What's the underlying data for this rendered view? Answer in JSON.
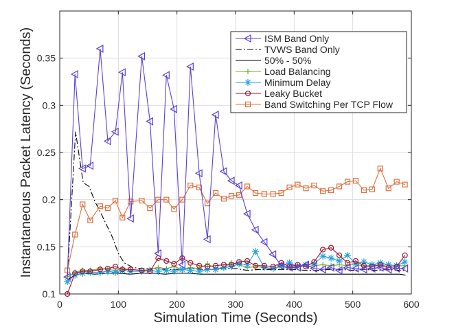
{
  "chart_data": {
    "type": "line",
    "xlabel": "Simulation Time (Seconds)",
    "ylabel": "Instantaneous Packet Latency (Seconds)",
    "xlim": [
      0,
      600
    ],
    "ylim": [
      0.1,
      0.4
    ],
    "xticks": [
      0,
      100,
      200,
      300,
      400,
      500,
      600
    ],
    "xtick_labels": [
      "0",
      "100",
      "200",
      "300",
      "400",
      "500",
      "600"
    ],
    "yticks": [
      0.1,
      0.15,
      0.2,
      0.25,
      0.3,
      0.35
    ],
    "ytick_labels": [
      "0.1",
      "0.15",
      "0.2",
      "0.25",
      "0.3",
      "0.35"
    ],
    "grid": true,
    "legend_position": "top-right",
    "series": [
      {
        "name": "ISM Band Only",
        "color": "#5b3fd6",
        "marker": "triangle-left",
        "x": [
          13,
          26,
          39,
          52,
          69,
          82,
          95,
          107,
          121,
          140,
          154,
          168,
          182,
          195,
          209,
          223,
          238,
          252,
          266,
          280,
          293,
          306,
          320,
          334,
          349,
          364,
          378,
          392,
          406,
          420,
          434,
          449,
          463,
          477,
          491,
          505,
          519,
          533,
          547,
          561,
          575,
          589
        ],
        "y": [
          0.118,
          0.333,
          0.233,
          0.236,
          0.36,
          0.262,
          0.272,
          0.335,
          0.18,
          0.352,
          0.283,
          0.143,
          0.332,
          0.296,
          0.131,
          0.341,
          0.228,
          0.158,
          0.29,
          0.23,
          0.22,
          0.215,
          0.185,
          0.168,
          0.155,
          0.142,
          0.13,
          0.128,
          0.128,
          0.131,
          0.127,
          0.126,
          0.128,
          0.125,
          0.128,
          0.127,
          0.126,
          0.127,
          0.128,
          0.126,
          0.127,
          0.127
        ]
      },
      {
        "name": "TVWS Band Only",
        "color": "#000000",
        "marker": "none",
        "x": [
          13,
          27,
          40,
          50,
          60,
          70,
          80,
          90,
          100,
          110,
          125,
          140,
          160,
          180,
          200,
          220,
          240,
          260,
          280,
          300,
          320,
          340,
          360,
          380,
          400,
          420,
          440,
          460,
          480,
          500,
          520,
          540,
          560,
          580,
          590
        ],
        "y": [
          0.118,
          0.272,
          0.218,
          0.214,
          0.198,
          0.186,
          0.173,
          0.16,
          0.143,
          0.133,
          0.128,
          0.127,
          0.127,
          0.126,
          0.126,
          0.127,
          0.126,
          0.126,
          0.127,
          0.127,
          0.125,
          0.126,
          0.126,
          0.126,
          0.126,
          0.125,
          0.125,
          0.126,
          0.126,
          0.125,
          0.126,
          0.125,
          0.126,
          0.125,
          0.125
        ]
      },
      {
        "name": "50% - 50%",
        "color": "#000000",
        "marker": "none",
        "x": [
          13,
          26,
          40,
          60,
          80,
          100,
          120,
          140,
          160,
          180,
          200,
          220,
          240,
          260,
          280,
          300,
          320,
          340,
          360,
          380,
          400,
          420,
          440,
          460,
          480,
          500,
          520,
          540,
          560,
          580,
          590
        ],
        "y": [
          0.115,
          0.12,
          0.122,
          0.121,
          0.122,
          0.122,
          0.121,
          0.122,
          0.122,
          0.121,
          0.122,
          0.122,
          0.121,
          0.121,
          0.121,
          0.121,
          0.121,
          0.121,
          0.121,
          0.121,
          0.121,
          0.121,
          0.121,
          0.121,
          0.121,
          0.121,
          0.121,
          0.121,
          0.121,
          0.121,
          0.12
        ]
      },
      {
        "name": "Load Balancing",
        "color": "#77ac30",
        "marker": "plus",
        "x": [
          13,
          26,
          39,
          52,
          69,
          82,
          95,
          107,
          121,
          140,
          154,
          168,
          182,
          195,
          209,
          223,
          238,
          252,
          266,
          280,
          293,
          306,
          320,
          334,
          349,
          364,
          378,
          392,
          406,
          420,
          434,
          449,
          463,
          477,
          491,
          505,
          519,
          533,
          547,
          561,
          575,
          589
        ],
        "y": [
          0.118,
          0.123,
          0.125,
          0.125,
          0.127,
          0.126,
          0.125,
          0.127,
          0.126,
          0.125,
          0.126,
          0.128,
          0.127,
          0.129,
          0.126,
          0.128,
          0.127,
          0.132,
          0.127,
          0.128,
          0.133,
          0.131,
          0.128,
          0.129,
          0.128,
          0.127,
          0.129,
          0.128,
          0.13,
          0.129,
          0.13,
          0.131,
          0.13,
          0.131,
          0.13,
          0.132,
          0.129,
          0.131,
          0.13,
          0.131,
          0.13,
          0.13
        ]
      },
      {
        "name": "Minimum Delay",
        "color": "#1ea3e6",
        "marker": "asterisk",
        "x": [
          13,
          26,
          39,
          52,
          69,
          82,
          95,
          107,
          121,
          140,
          154,
          168,
          182,
          195,
          209,
          223,
          238,
          252,
          266,
          280,
          293,
          306,
          320,
          334,
          349,
          364,
          378,
          392,
          406,
          420,
          434,
          449,
          463,
          477,
          491,
          505,
          519,
          533,
          547,
          561,
          575,
          589
        ],
        "y": [
          0.113,
          0.12,
          0.122,
          0.123,
          0.123,
          0.124,
          0.123,
          0.125,
          0.124,
          0.124,
          0.125,
          0.124,
          0.125,
          0.124,
          0.126,
          0.125,
          0.124,
          0.126,
          0.126,
          0.128,
          0.129,
          0.132,
          0.131,
          0.145,
          0.128,
          0.127,
          0.13,
          0.133,
          0.129,
          0.131,
          0.132,
          0.14,
          0.138,
          0.135,
          0.141,
          0.132,
          0.134,
          0.131,
          0.133,
          0.131,
          0.13,
          0.134
        ]
      },
      {
        "name": "Leaky Bucket",
        "color": "#a2142f",
        "marker": "circle",
        "x": [
          13,
          26,
          39,
          52,
          69,
          82,
          95,
          107,
          121,
          140,
          154,
          168,
          182,
          195,
          209,
          223,
          238,
          252,
          266,
          280,
          293,
          306,
          320,
          334,
          349,
          364,
          378,
          392,
          406,
          420,
          434,
          449,
          463,
          477,
          491,
          505,
          519,
          533,
          547,
          561,
          575,
          589
        ],
        "y": [
          0.1,
          0.122,
          0.124,
          0.124,
          0.126,
          0.127,
          0.129,
          0.126,
          0.126,
          0.125,
          0.124,
          0.138,
          0.135,
          0.132,
          0.138,
          0.133,
          0.13,
          0.129,
          0.13,
          0.131,
          0.131,
          0.134,
          0.135,
          0.13,
          0.13,
          0.129,
          0.133,
          0.129,
          0.131,
          0.129,
          0.134,
          0.147,
          0.149,
          0.141,
          0.133,
          0.135,
          0.13,
          0.129,
          0.131,
          0.128,
          0.129,
          0.141
        ]
      },
      {
        "name": "Band Switching Per TCP Flow",
        "color": "#e06f3c",
        "marker": "square",
        "x": [
          13,
          26,
          39,
          52,
          69,
          82,
          95,
          107,
          121,
          140,
          154,
          168,
          182,
          195,
          209,
          223,
          238,
          252,
          266,
          280,
          293,
          306,
          320,
          334,
          349,
          364,
          378,
          392,
          406,
          420,
          434,
          449,
          463,
          477,
          491,
          505,
          519,
          533,
          547,
          561,
          575,
          589
        ],
        "y": [
          0.125,
          0.163,
          0.195,
          0.178,
          0.193,
          0.191,
          0.199,
          0.181,
          0.198,
          0.199,
          0.191,
          0.2,
          0.2,
          0.19,
          0.2,
          0.215,
          0.213,
          0.196,
          0.207,
          0.201,
          0.204,
          0.205,
          0.214,
          0.207,
          0.206,
          0.206,
          0.207,
          0.213,
          0.216,
          0.212,
          0.215,
          0.209,
          0.21,
          0.214,
          0.219,
          0.22,
          0.21,
          0.211,
          0.233,
          0.212,
          0.219,
          0.216
        ]
      }
    ]
  }
}
